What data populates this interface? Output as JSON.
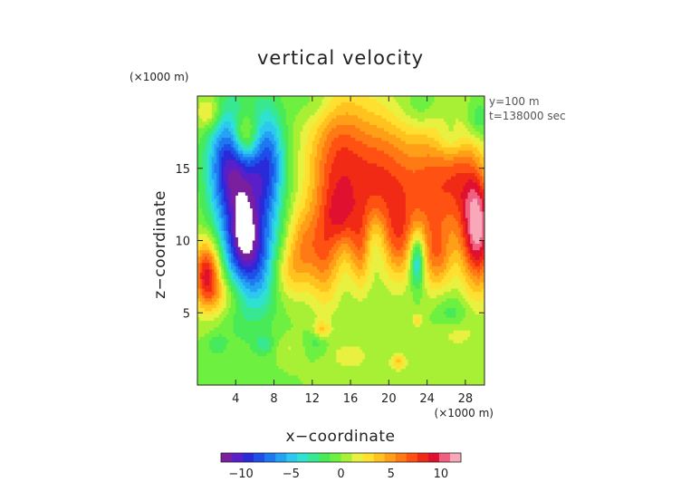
{
  "chart_data": {
    "type": "heatmap",
    "title": "vertical velocity",
    "xlabel": "x−coordinate",
    "ylabel": "z−coordinate",
    "x_unit": "(×1000 m)",
    "y_unit": "(×1000 m)",
    "annotations": [
      "y=100 m",
      "t=138000 sec"
    ],
    "xlim": [
      0,
      30
    ],
    "ylim": [
      0,
      20
    ],
    "x_ticks": [
      4,
      8,
      12,
      16,
      20,
      24,
      28
    ],
    "x_tick_labels": [
      "4",
      "8",
      "12",
      "16",
      "20",
      "24",
      "28"
    ],
    "y_ticks": [
      5,
      10,
      15
    ],
    "y_tick_labels": [
      "5",
      "10",
      "15"
    ],
    "colorbar": {
      "range": [
        -12,
        12
      ],
      "ticks": [
        -10,
        -5,
        0,
        5,
        10
      ],
      "tick_labels": [
        "−10",
        "−5",
        "0",
        "5",
        "10"
      ],
      "colors": [
        "#7a1fa0",
        "#5a1fc8",
        "#2a2ad8",
        "#1e4fe8",
        "#1e78f0",
        "#25a2f3",
        "#2cc8f0",
        "#2fe2d0",
        "#38e890",
        "#48ea58",
        "#6ef040",
        "#a8f035",
        "#e8f040",
        "#ffe030",
        "#ffc21e",
        "#ff9f18",
        "#ff7a14",
        "#ff5212",
        "#f02a14",
        "#e01030",
        "#f06080",
        "#f8a8b8"
      ],
      "below_min_color": "#ffffff"
    },
    "features": [
      {
        "x": 5.0,
        "z": 12.0,
        "sx": 2.0,
        "sz": 4.2,
        "w": -9.5
      },
      {
        "x": 3.0,
        "z": 15.5,
        "sx": 1.5,
        "sz": 2.5,
        "w": -6.0
      },
      {
        "x": 7.5,
        "z": 15.5,
        "sx": 1.2,
        "sz": 2.6,
        "w": -5.5
      },
      {
        "x": 4.8,
        "z": 10.3,
        "sx": 1.0,
        "sz": 1.6,
        "w": -4.0
      },
      {
        "x": 6.8,
        "z": 8.0,
        "sx": 1.6,
        "sz": 2.0,
        "w": -3.5
      },
      {
        "x": 1.0,
        "z": 7.7,
        "sx": 1.0,
        "sz": 1.6,
        "w": 9.5
      },
      {
        "x": 2.8,
        "z": 6.2,
        "sx": 1.5,
        "sz": 1.0,
        "w": 3.0
      },
      {
        "x": 5.0,
        "z": 17.2,
        "sx": 1.0,
        "sz": 1.2,
        "w": 6.0
      },
      {
        "x": 1.2,
        "z": 18.8,
        "sx": 0.9,
        "sz": 0.8,
        "w": 3.5
      },
      {
        "x": 14.8,
        "z": 15.0,
        "sx": 2.3,
        "sz": 3.6,
        "w": 7.5
      },
      {
        "x": 15.0,
        "z": 11.6,
        "sx": 1.0,
        "sz": 1.4,
        "w": 3.0
      },
      {
        "x": 13.3,
        "z": 9.0,
        "sx": 1.1,
        "sz": 2.6,
        "w": 4.5
      },
      {
        "x": 11.0,
        "z": 9.8,
        "sx": 1.2,
        "sz": 1.8,
        "w": 4.0
      },
      {
        "x": 9.3,
        "z": 7.8,
        "sx": 1.5,
        "sz": 1.4,
        "w": 3.5
      },
      {
        "x": 19.5,
        "z": 14.0,
        "sx": 2.2,
        "sz": 3.3,
        "w": 6.5
      },
      {
        "x": 17.0,
        "z": 9.5,
        "sx": 0.8,
        "sz": 2.0,
        "w": 4.0
      },
      {
        "x": 21.0,
        "z": 10.0,
        "sx": 1.0,
        "sz": 2.0,
        "w": 4.0
      },
      {
        "x": 24.5,
        "z": 13.5,
        "sx": 2.2,
        "sz": 3.0,
        "w": 6.5
      },
      {
        "x": 25.0,
        "z": 8.8,
        "sx": 1.2,
        "sz": 1.6,
        "w": 4.5
      },
      {
        "x": 29.3,
        "z": 10.8,
        "sx": 1.2,
        "sz": 2.8,
        "w": 11.0
      },
      {
        "x": 27.5,
        "z": 14.5,
        "sx": 1.5,
        "sz": 2.5,
        "w": 4.0
      },
      {
        "x": 23.0,
        "z": 8.6,
        "sx": 0.55,
        "sz": 1.3,
        "w": -7.0
      },
      {
        "x": 18.5,
        "z": 10.0,
        "sx": 0.8,
        "sz": 1.5,
        "w": -2.0
      },
      {
        "x": 12.5,
        "z": 19.5,
        "sx": 1.6,
        "sz": 1.0,
        "w": -1.5
      },
      {
        "x": 23.2,
        "z": 19.2,
        "sx": 1.6,
        "sz": 1.0,
        "w": -1.6
      },
      {
        "x": 26.5,
        "z": 17.0,
        "sx": 1.0,
        "sz": 1.0,
        "w": -2.5
      },
      {
        "x": 29.3,
        "z": 18.3,
        "sx": 0.9,
        "sz": 1.0,
        "w": -2.5
      },
      {
        "x": 2.0,
        "z": 2.8,
        "sx": 0.7,
        "sz": 0.5,
        "w": -2.0
      },
      {
        "x": 7.0,
        "z": 2.8,
        "sx": 0.7,
        "sz": 0.5,
        "w": -2.5
      },
      {
        "x": 12.5,
        "z": 3.0,
        "sx": 0.8,
        "sz": 0.6,
        "w": -1.8
      },
      {
        "x": 26.5,
        "z": 5.0,
        "sx": 1.2,
        "sz": 0.8,
        "w": -1.8
      },
      {
        "x": 13.0,
        "z": 3.8,
        "sx": 0.6,
        "sz": 0.4,
        "w": 3.5
      },
      {
        "x": 21.0,
        "z": 1.6,
        "sx": 0.6,
        "sz": 0.4,
        "w": 3.5
      },
      {
        "x": 23.0,
        "z": 4.5,
        "sx": 0.4,
        "sz": 0.3,
        "w": 3.0
      },
      {
        "x": 16.0,
        "z": 2.0,
        "sx": 1.5,
        "sz": 0.7,
        "w": 1.8
      },
      {
        "x": 27.0,
        "z": 3.5,
        "sx": 1.5,
        "sz": 0.7,
        "w": 1.5
      },
      {
        "x": 9.5,
        "z": 2.5,
        "sx": 1.0,
        "sz": 0.6,
        "w": 1.2
      }
    ]
  }
}
